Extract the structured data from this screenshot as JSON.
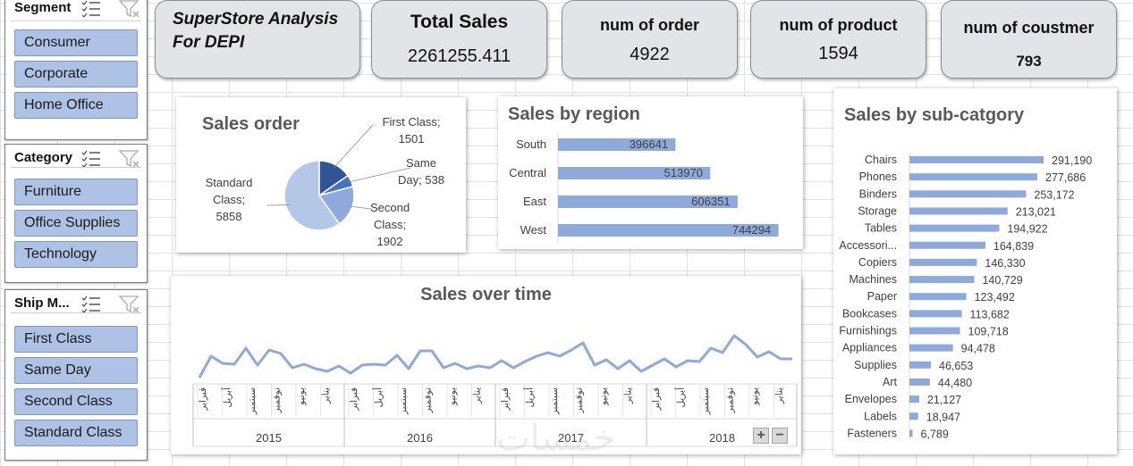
{
  "slicers": {
    "segment": {
      "title": "Segment",
      "items": [
        "Consumer",
        "Corporate",
        "Home Office"
      ]
    },
    "category": {
      "title": "Category",
      "items": [
        "Furniture",
        "Office Supplies",
        "Technology"
      ]
    },
    "ship_mode": {
      "title": "Ship M...",
      "items": [
        "First Class",
        "Same Day",
        "Second Class",
        "Standard Class"
      ]
    }
  },
  "header": {
    "title_line1": "SuperStore Analysis",
    "title_line2": "For DEPI"
  },
  "kpis": {
    "total_sales": {
      "label": "Total Sales",
      "value": "2261255.411"
    },
    "num_order": {
      "label": "num of order",
      "value": "4922"
    },
    "num_product": {
      "label": "num of product",
      "value": "1594"
    },
    "num_customer": {
      "label": "num of coustmer",
      "value": "793"
    }
  },
  "colors": {
    "bar": "#8ea9db",
    "pie_dark": "#2f5597",
    "pie_mid": "#4472c4",
    "pie_light": "#8faadc",
    "pie_lightest": "#b4c7e7",
    "line": "#8ea9db"
  },
  "chart_data": [
    {
      "type": "pie",
      "title": "Sales order",
      "slices": [
        {
          "name": "First Class",
          "value": 1501,
          "label_lines": [
            "First Class;",
            "1501"
          ]
        },
        {
          "name": "Same Day",
          "value": 538,
          "label_lines": [
            "Same",
            "Day; 538"
          ]
        },
        {
          "name": "Second Class",
          "value": 1902,
          "label_lines": [
            "Second",
            "Class;",
            "1902"
          ]
        },
        {
          "name": "Standard Class",
          "value": 5858,
          "label_lines": [
            "Standard",
            "Class;",
            "5858"
          ]
        }
      ]
    },
    {
      "type": "bar",
      "orientation": "horizontal",
      "title": "Sales by region",
      "categories": [
        "South",
        "Central",
        "East",
        "West"
      ],
      "values": [
        396641,
        513970,
        606351,
        744294
      ],
      "xlim": [
        0,
        800000
      ]
    },
    {
      "type": "bar",
      "orientation": "horizontal",
      "title": "Sales by sub-catgory",
      "categories": [
        "Chairs",
        "Phones",
        "Binders",
        "Storage",
        "Tables",
        "Accessori...",
        "Copiers",
        "Machines",
        "Paper",
        "Bookcases",
        "Furnishings",
        "Appliances",
        "Supplies",
        "Art",
        "Envelopes",
        "Labels",
        "Fasteners"
      ],
      "values": [
        291190,
        277686,
        253172,
        213021,
        194922,
        164839,
        146330,
        140729,
        123492,
        113682,
        109718,
        94478,
        46653,
        44480,
        21127,
        18947,
        6789
      ],
      "value_labels": [
        "291,190",
        "277,686",
        "253,172",
        "213,021",
        "194,922",
        "164,839",
        "146,330",
        "140,729",
        "123,492",
        "113,682",
        "109,718",
        "94,478",
        "46,653",
        "44,480",
        "21,127",
        "18,947",
        "6,789"
      ]
    },
    {
      "type": "line",
      "title": "Sales over time",
      "years": [
        "2015",
        "2016",
        "2017",
        "2018"
      ],
      "month_labels": [
        "فبراير",
        "أبريل",
        "سبتمبر",
        "نوفمبر",
        "يونيو",
        "يناير"
      ],
      "values": [
        6000,
        30000,
        22000,
        21000,
        39000,
        20000,
        37000,
        33000,
        17000,
        21000,
        16000,
        13000,
        19000,
        11000,
        20000,
        21000,
        20000,
        31000,
        16000,
        36000,
        36000,
        17000,
        22000,
        16000,
        19000,
        17000,
        25000,
        17000,
        24000,
        30000,
        34000,
        30000,
        37000,
        45000,
        20000,
        26000,
        16000,
        25000,
        13000,
        20000,
        27000,
        18000,
        25000,
        24000,
        39000,
        34000,
        53000,
        43000,
        29000,
        35000,
        27000,
        27000
      ],
      "ylim": [
        0,
        80000
      ]
    }
  ],
  "zoom_controls": {
    "plus": "+",
    "minus": "−"
  },
  "watermark": "خمسات"
}
